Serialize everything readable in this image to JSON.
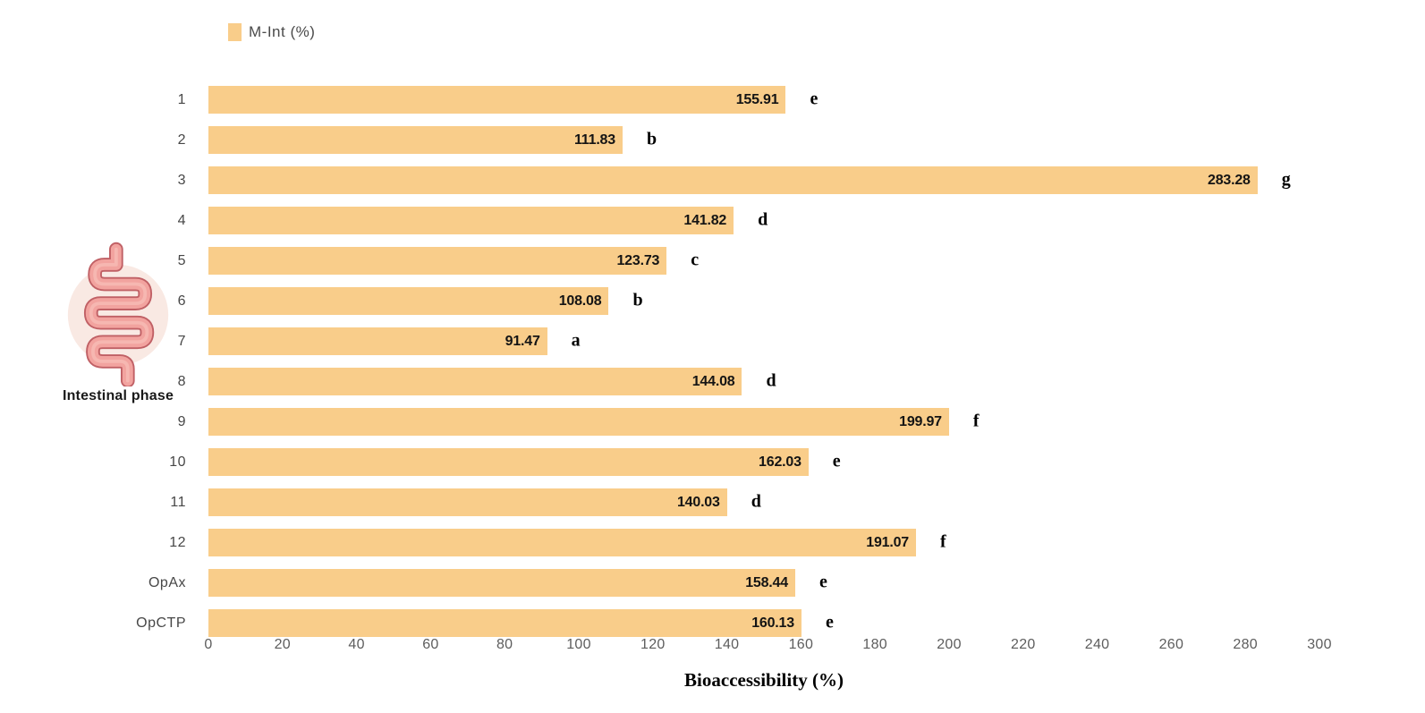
{
  "legend": {
    "label": "M-Int (%)"
  },
  "side_figure": {
    "caption": "Intestinal phase",
    "icon": "intestine-icon"
  },
  "colors": {
    "bar": "#F9CD8A",
    "value_text": "#141414",
    "category_text": "#474747",
    "tick_text": "#5d5d5d",
    "intestine_circle": "#F9E9E3",
    "intestine_outline": "#C06065",
    "intestine_fill": "#F2A39F",
    "intestine_highlight": "#F6B7B1"
  },
  "chart_data": {
    "type": "bar",
    "orientation": "horizontal",
    "title": "",
    "xlabel": "Bioaccessibility (%)",
    "ylabel": "",
    "series_name": "M-Int (%)",
    "categories": [
      "1",
      "2",
      "3",
      "4",
      "5",
      "6",
      "7",
      "8",
      "9",
      "10",
      "11",
      "12",
      "OpAx",
      "OpCTP"
    ],
    "values": [
      155.91,
      111.83,
      283.28,
      141.82,
      123.73,
      108.08,
      91.47,
      144.08,
      199.97,
      162.03,
      140.03,
      191.07,
      158.44,
      160.13
    ],
    "significance_letters": [
      "e",
      "b",
      "g",
      "d",
      "c",
      "b",
      "a",
      "d",
      "f",
      "e",
      "d",
      "f",
      "e",
      "e"
    ],
    "xlim": [
      0,
      300
    ],
    "xticks": [
      0,
      20,
      40,
      60,
      80,
      100,
      120,
      140,
      160,
      180,
      200,
      220,
      240,
      260,
      280,
      300
    ],
    "grid": false,
    "legend_position": "top-left",
    "value_labels": "inside-end",
    "bar_color": "#F9CD8A"
  }
}
